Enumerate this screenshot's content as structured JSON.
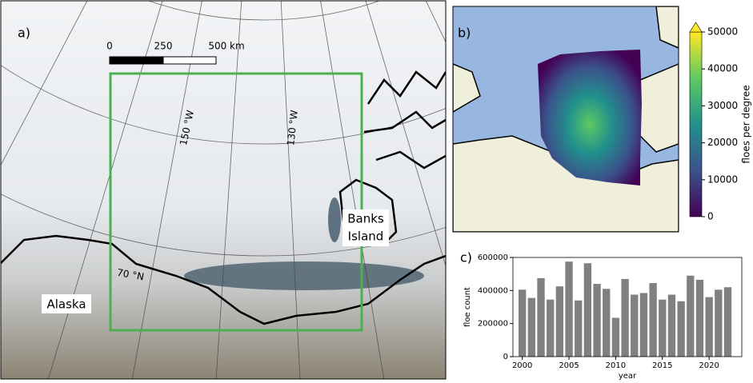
{
  "map_a": {
    "panel_label": "a)",
    "scale_bar": [
      "0",
      "250",
      "500 km"
    ],
    "meridians": [
      "150 °W",
      "130 °W"
    ],
    "parallel": "70 °N",
    "places": [
      "Alaska",
      "Banks",
      "Island"
    ]
  },
  "map_b": {
    "panel_label": "b)",
    "colorbar": {
      "label": "floes per degree",
      "colormap": "viridis",
      "lim": [
        0,
        50000
      ],
      "ticks": [
        0,
        10000,
        20000,
        30000,
        40000,
        50000
      ]
    }
  },
  "chart_data": {
    "type": "bar",
    "panel_label": "c)",
    "xlabel": "year",
    "ylabel": "floe count",
    "x": [
      2000,
      2001,
      2002,
      2003,
      2004,
      2005,
      2006,
      2007,
      2008,
      2009,
      2010,
      2011,
      2012,
      2013,
      2014,
      2015,
      2016,
      2017,
      2018,
      2019,
      2020,
      2021,
      2022
    ],
    "values": [
      405000,
      355000,
      475000,
      345000,
      425000,
      575000,
      340000,
      565000,
      440000,
      410000,
      235000,
      470000,
      375000,
      385000,
      445000,
      345000,
      375000,
      335000,
      490000,
      465000,
      360000,
      405000,
      420000
    ],
    "color": "#808080",
    "xlim": [
      1999,
      2023.5
    ],
    "xticks": [
      2000,
      2005,
      2010,
      2015,
      2020
    ],
    "ylim": [
      0,
      600000
    ],
    "yticks": [
      0,
      200000,
      400000,
      600000
    ]
  }
}
